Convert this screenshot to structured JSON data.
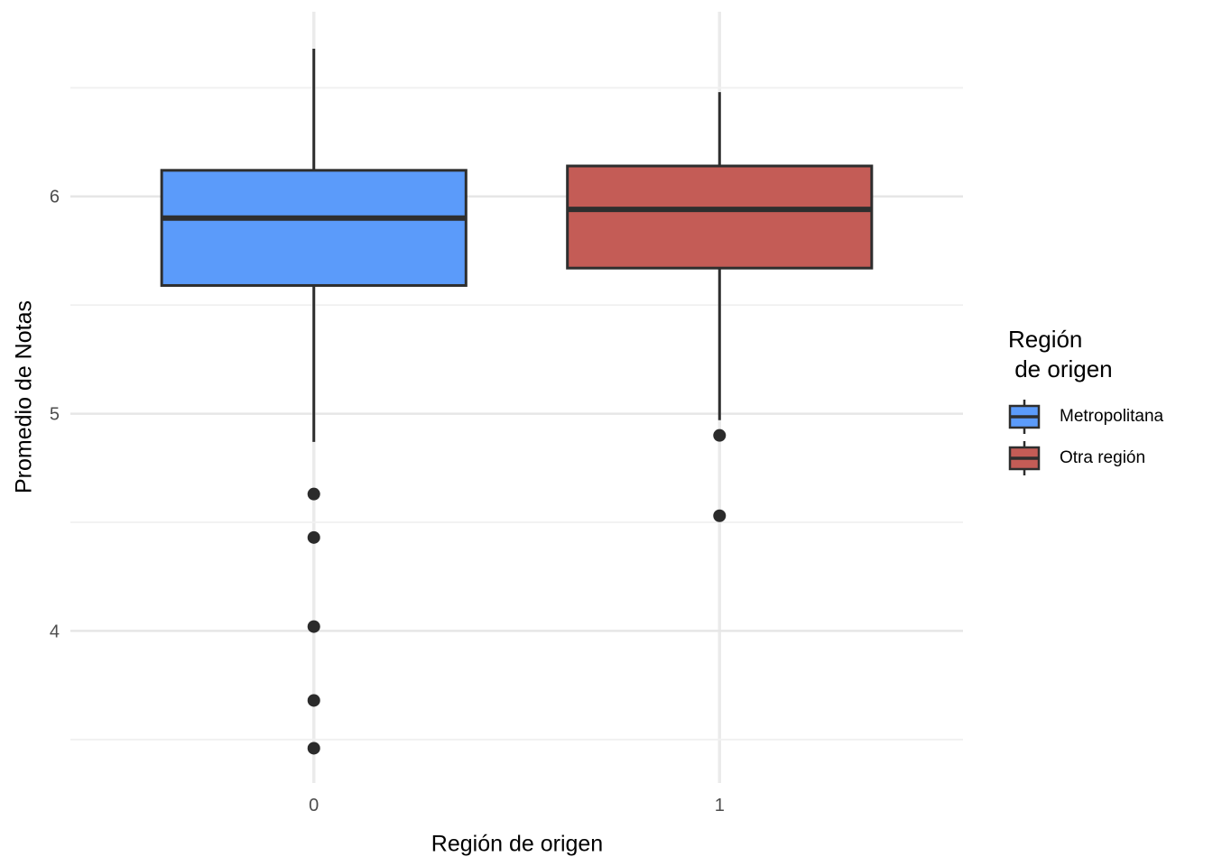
{
  "chart_data": {
    "type": "boxplot",
    "xlabel": "Región de origen",
    "ylabel": "Promedio de Notas",
    "categories": [
      "0",
      "1"
    ],
    "y_ticks": [
      4,
      5,
      6
    ],
    "y_minor_ticks": [
      3.5,
      4.5,
      5.5,
      6.5
    ],
    "ylim": [
      3.3,
      6.85
    ],
    "grid": "major and minor horizontal, major vertical per category, no axis lines, white background",
    "legend_position": "right",
    "series": [
      {
        "name": "Metropolitana",
        "category": "0",
        "fill": "#5B9BFA",
        "whisker_high": 6.68,
        "q3": 6.12,
        "median": 5.9,
        "q1": 5.59,
        "whisker_low": 4.87,
        "outliers": [
          4.63,
          4.43,
          4.02,
          3.68,
          3.46
        ]
      },
      {
        "name": "Otra región",
        "category": "1",
        "fill": "#C45C56",
        "whisker_high": 6.48,
        "q3": 6.14,
        "median": 5.94,
        "q1": 5.67,
        "whisker_low": 4.97,
        "outliers": [
          4.9,
          4.53
        ]
      }
    ]
  },
  "legend": {
    "title_lines": [
      "Región",
      " de origen"
    ],
    "items": [
      {
        "label": "Metropolitana",
        "color": "#5B9BFA"
      },
      {
        "label": "Otra región",
        "color": "#C45C56"
      }
    ]
  },
  "colors": {
    "line": "#2E2E2E",
    "outlier": "#2B2B2B",
    "grid_major": "#E6E6E6",
    "grid_minor": "#F0F0F0",
    "grid_vertical": "#EBEBEB",
    "tick_text": "#4D4D4D",
    "background": "#FFFFFF"
  }
}
